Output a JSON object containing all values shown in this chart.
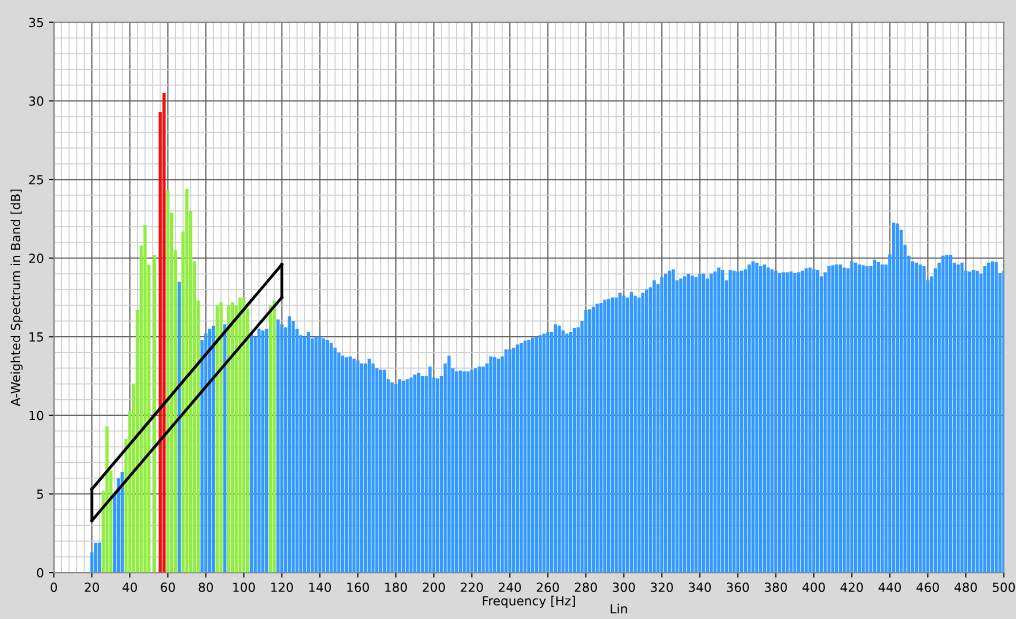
{
  "chart_data": {
    "type": "bar",
    "xlabel": "Frequency [Hz]",
    "ylabel": "A-Weighted Spectrum in Band [dB]",
    "annotations": [
      "Lin"
    ],
    "xlim": [
      0,
      500
    ],
    "ylim": [
      0,
      35
    ],
    "xticks": [
      0,
      20,
      40,
      60,
      80,
      100,
      120,
      140,
      160,
      180,
      200,
      220,
      240,
      260,
      280,
      300,
      320,
      340,
      360,
      380,
      400,
      420,
      440,
      460,
      480,
      500
    ],
    "yticks": [
      0,
      5,
      10,
      15,
      20,
      25,
      30,
      35
    ],
    "grid": true,
    "series": [
      {
        "color": "#3399ff",
        "x": [
          20,
          22,
          24,
          32,
          34,
          36,
          66,
          78,
          80,
          82,
          84,
          90,
          104,
          106,
          108,
          110,
          112,
          118,
          120,
          122,
          124,
          126,
          128,
          130,
          132,
          134,
          136,
          138,
          140,
          142,
          144,
          146,
          148,
          150,
          152,
          154,
          156,
          158,
          160,
          162,
          164,
          166,
          168,
          170,
          172,
          174,
          176,
          178,
          180,
          182,
          184,
          186,
          188,
          190,
          192,
          194,
          196,
          198,
          200,
          202,
          204,
          206,
          208,
          210,
          212,
          214,
          216,
          218,
          220,
          222,
          224,
          226,
          228,
          230,
          232,
          234,
          236,
          238,
          240,
          242,
          244,
          246,
          248,
          250,
          252,
          254,
          256,
          258,
          260,
          262,
          264,
          266,
          268,
          270,
          272,
          274,
          276,
          278,
          280,
          282,
          284,
          286,
          288,
          290,
          292,
          294,
          296,
          298,
          300,
          302,
          304,
          306,
          308,
          310,
          312,
          314,
          316,
          318,
          320,
          322,
          324,
          326,
          328,
          330,
          332,
          334,
          336,
          338,
          340,
          342,
          344,
          346,
          348,
          350,
          352,
          354,
          356,
          358,
          360,
          362,
          364,
          366,
          368,
          370,
          372,
          374,
          376,
          378,
          380,
          382,
          384,
          386,
          388,
          390,
          392,
          394,
          396,
          398,
          400,
          402,
          404,
          406,
          408,
          410,
          412,
          414,
          416,
          418,
          420,
          422,
          424,
          426,
          428,
          430,
          432,
          434,
          436,
          438,
          440,
          442,
          444,
          446,
          448,
          450,
          452,
          454,
          456,
          458,
          460,
          462,
          464,
          466,
          468,
          470,
          472,
          474,
          476,
          478,
          480,
          482,
          484,
          486,
          488,
          490,
          492,
          494,
          496,
          498,
          500
        ],
        "values": [
          1.3,
          1.9,
          1.9,
          5.0,
          6.0,
          6.4,
          18.5,
          14.8,
          15.2,
          15.5,
          15.7,
          15.8,
          15.3,
          15.0,
          15.5,
          15.4,
          15.5,
          16.1,
          15.8,
          15.6,
          16.3,
          16.0,
          15.5,
          15.1,
          15.0,
          15.3,
          14.9,
          15.0,
          15.0,
          14.9,
          14.8,
          14.6,
          14.3,
          14.0,
          13.8,
          13.7,
          13.75,
          13.6,
          13.5,
          13.3,
          13.3,
          13.6,
          13.3,
          13.0,
          12.9,
          12.9,
          12.3,
          12.1,
          12.0,
          12.3,
          12.2,
          12.3,
          12.4,
          12.6,
          12.7,
          12.5,
          12.5,
          13.1,
          12.4,
          12.35,
          12.5,
          13.3,
          13.8,
          13.0,
          12.8,
          12.85,
          12.8,
          12.8,
          12.9,
          13.0,
          13.1,
          13.1,
          13.3,
          13.75,
          13.7,
          13.6,
          13.75,
          14.2,
          14.2,
          14.3,
          14.5,
          14.6,
          14.75,
          14.8,
          14.95,
          15.0,
          15.1,
          15.2,
          15.3,
          15.3,
          15.8,
          15.7,
          15.4,
          15.2,
          15.3,
          15.55,
          15.6,
          16.0,
          16.7,
          16.75,
          16.9,
          17.1,
          17.15,
          17.35,
          17.4,
          17.5,
          17.5,
          17.8,
          17.6,
          17.5,
          17.85,
          17.6,
          17.5,
          17.8,
          18.0,
          18.15,
          18.6,
          18.35,
          18.8,
          19.0,
          19.2,
          19.3,
          18.6,
          18.7,
          18.85,
          19.0,
          18.9,
          18.8,
          19.0,
          19.0,
          18.7,
          19.0,
          19.15,
          19.4,
          19.25,
          18.6,
          19.25,
          19.2,
          19.15,
          19.2,
          19.3,
          19.6,
          19.8,
          19.7,
          19.5,
          19.6,
          19.4,
          19.3,
          19.2,
          19.05,
          19.1,
          19.1,
          19.15,
          19.05,
          19.1,
          19.2,
          19.35,
          19.4,
          19.3,
          19.25,
          18.85,
          19.1,
          19.5,
          19.55,
          19.6,
          19.6,
          19.4,
          19.35,
          19.8,
          19.7,
          19.6,
          19.55,
          19.5,
          19.5,
          19.9,
          19.75,
          19.6,
          19.6,
          20.25,
          22.25,
          22.2,
          21.8,
          20.85,
          20.15,
          19.8,
          19.7,
          19.6,
          19.5,
          18.6,
          18.85,
          19.35,
          19.7,
          20.15,
          20.2,
          20.2,
          19.7,
          19.6,
          19.7,
          19.2,
          19.15,
          19.25,
          19.2,
          19.0,
          19.5,
          19.7,
          19.8,
          19.75,
          19.05,
          19.2
        ]
      },
      {
        "color": "#90ee40",
        "x": [
          26,
          28,
          30,
          38,
          40,
          42,
          44,
          46,
          48,
          50,
          53,
          60,
          62,
          64,
          68,
          70,
          72,
          74,
          76,
          86,
          88,
          92,
          94,
          96,
          98,
          100,
          102,
          114,
          116
        ],
        "values": [
          5.2,
          9.3,
          6.5,
          8.5,
          10.3,
          12.0,
          16.7,
          20.8,
          22.1,
          19.6,
          20.2,
          24.3,
          22.9,
          20.5,
          21.7,
          24.4,
          23.0,
          19.8,
          17.3,
          17.0,
          17.2,
          17.0,
          17.2,
          17.0,
          17.5,
          17.5,
          16.8,
          17.0,
          17.3
        ]
      },
      {
        "color": "#ee1111",
        "x": [
          56,
          58
        ],
        "values": [
          29.3,
          30.5
        ]
      },
      {
        "type": "line",
        "color": "#000000",
        "x": [
          20,
          120
        ],
        "values": [
          5.3,
          19.6
        ]
      },
      {
        "type": "line",
        "color": "#000000",
        "x": [
          20,
          120
        ],
        "values": [
          3.3,
          17.5
        ]
      }
    ]
  }
}
